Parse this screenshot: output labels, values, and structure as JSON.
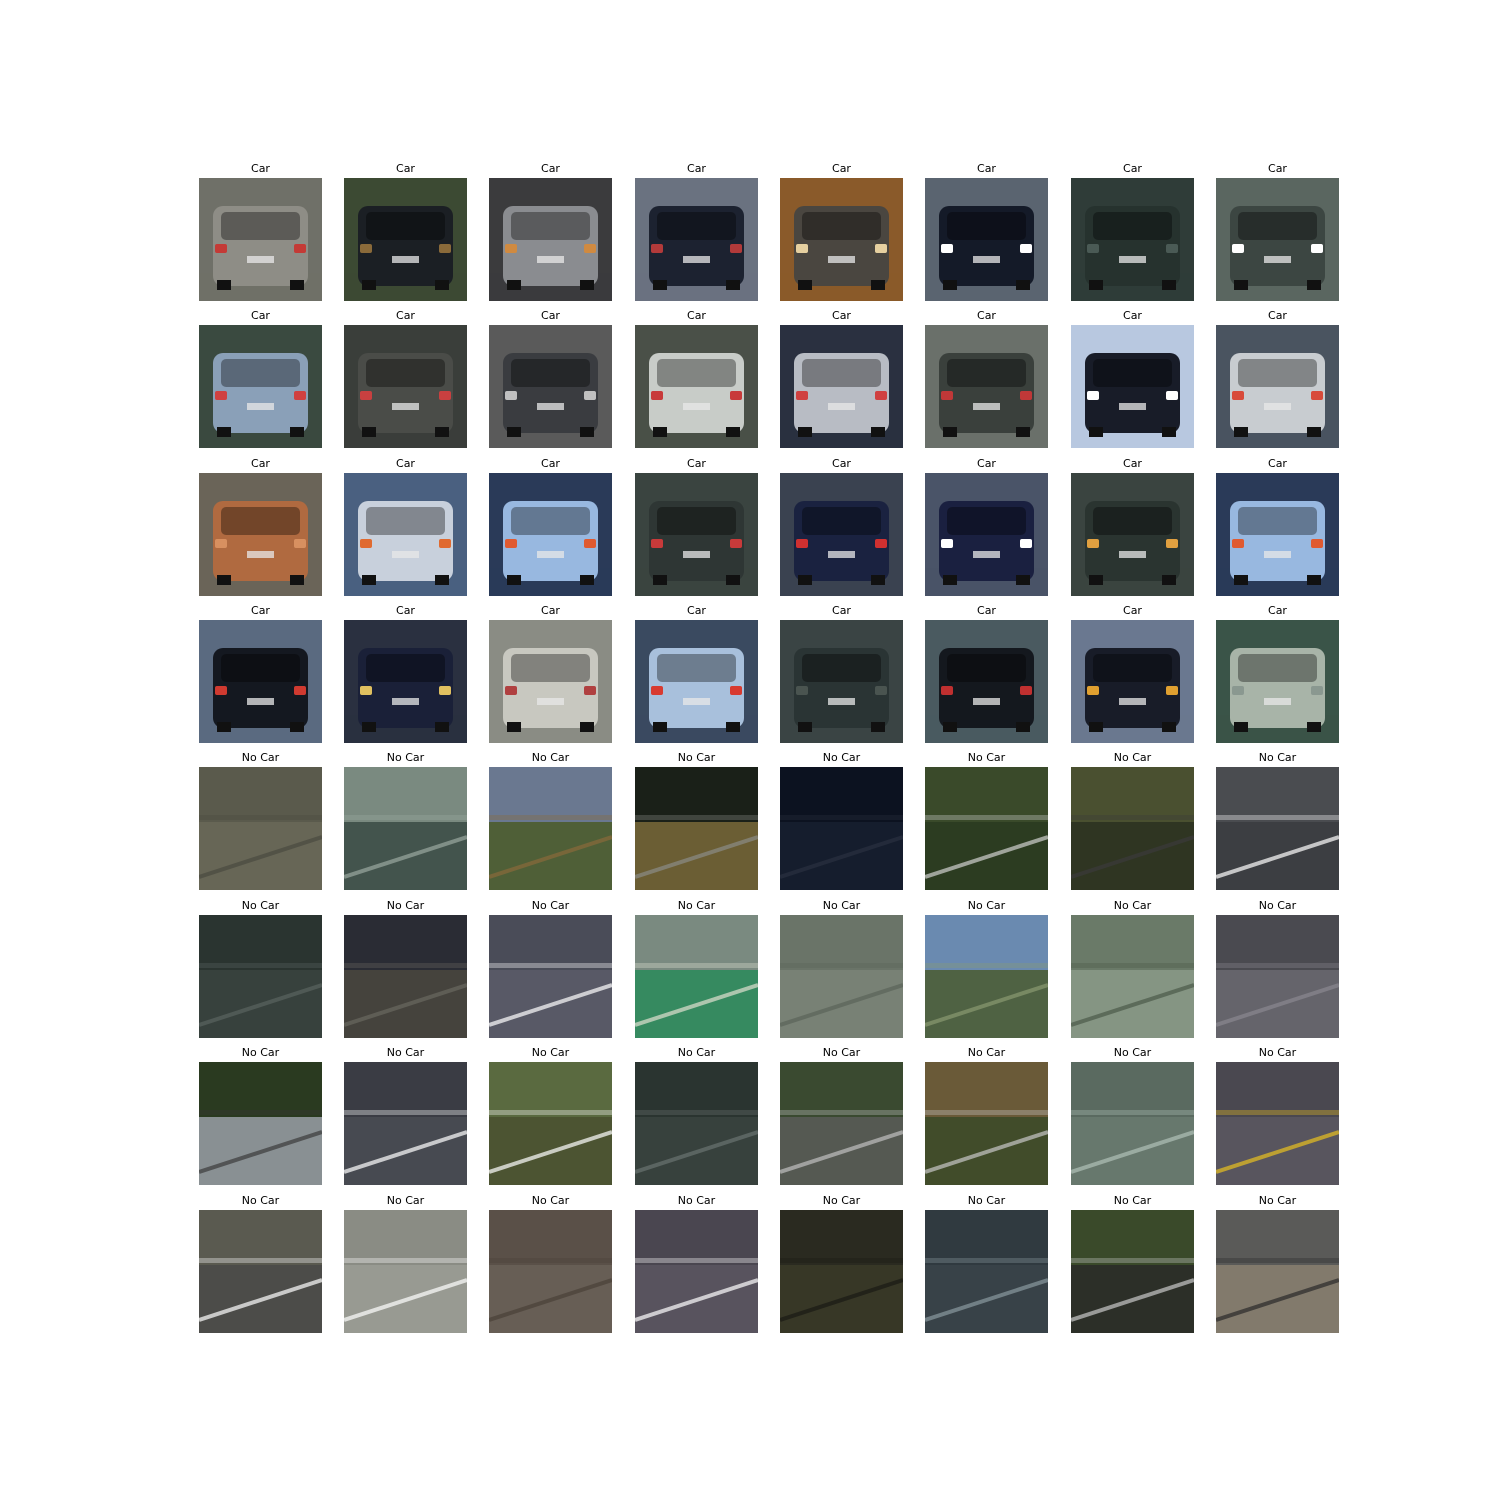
{
  "figure": {
    "rows": 8,
    "columns": 8,
    "cells": [
      {
        "label": "Car",
        "class": "car",
        "tone": "gray-van",
        "bg": "#6f7068",
        "body": "#8e8d86",
        "accent": "#c43a36"
      },
      {
        "label": "Car",
        "class": "car",
        "tone": "dark-parked-trees",
        "bg": "#3c4a33",
        "body": "#1b1f24",
        "accent": "#8a6a3a"
      },
      {
        "label": "Car",
        "class": "car",
        "tone": "silver-blurred",
        "bg": "#3b3b3d",
        "body": "#8a8c90",
        "accent": "#d08a40"
      },
      {
        "label": "Car",
        "class": "car",
        "tone": "dark-blue",
        "bg": "#6a7280",
        "body": "#1c2230",
        "accent": "#b23a3a"
      },
      {
        "label": "Car",
        "class": "car",
        "tone": "small-orange-bg",
        "bg": "#8a5a2a",
        "body": "#4a4640",
        "accent": "#e6d0a0"
      },
      {
        "label": "Car",
        "class": "car",
        "tone": "navy-plate",
        "bg": "#5a6470",
        "body": "#141a28",
        "accent": "#ffffff"
      },
      {
        "label": "Car",
        "class": "car",
        "tone": "dark-green-blur",
        "bg": "#2f3c38",
        "body": "#26322e",
        "accent": "#4a5a55"
      },
      {
        "label": "Car",
        "class": "car",
        "tone": "green-sedan",
        "bg": "#5a6660",
        "body": "#3c4642",
        "accent": "#ffffff"
      },
      {
        "label": "Car",
        "class": "car",
        "tone": "silver-hatch",
        "bg": "#3a4a40",
        "body": "#8aa0b8",
        "accent": "#d04040"
      },
      {
        "label": "Car",
        "class": "car",
        "tone": "dark-gray-blur",
        "bg": "#3a3e3a",
        "body": "#4a4c48",
        "accent": "#c84040"
      },
      {
        "label": "Car",
        "class": "car",
        "tone": "wagon-parked",
        "bg": "#5a5a5a",
        "body": "#3a3c40",
        "accent": "#c0c0c0"
      },
      {
        "label": "Car",
        "class": "car",
        "tone": "white-hatch",
        "bg": "#4a5048",
        "body": "#c8ccc8",
        "accent": "#c83a3a"
      },
      {
        "label": "Car",
        "class": "car",
        "tone": "white-sedan-road",
        "bg": "#2a3040",
        "body": "#b8bcc4",
        "accent": "#d04040"
      },
      {
        "label": "Car",
        "class": "car",
        "tone": "gray-sedan",
        "bg": "#6a706a",
        "body": "#3a403c",
        "accent": "#c03838"
      },
      {
        "label": "Car",
        "class": "car",
        "tone": "dark-suv-bright",
        "bg": "#b8c8e0",
        "body": "#181c28",
        "accent": "#ffffff"
      },
      {
        "label": "Car",
        "class": "car",
        "tone": "silver-wagon",
        "bg": "#4a5460",
        "body": "#c8ccd0",
        "accent": "#d84a3a"
      },
      {
        "label": "Car",
        "class": "car",
        "tone": "orange-hatch",
        "bg": "#6a6458",
        "body": "#b06a40",
        "accent": "#d89060"
      },
      {
        "label": "Car",
        "class": "car",
        "tone": "white-blue-hatch",
        "bg": "#4a6080",
        "body": "#c8d0dc",
        "accent": "#e06a30"
      },
      {
        "label": "Car",
        "class": "car",
        "tone": "blue-hatch",
        "bg": "#2a3a58",
        "body": "#98b8e0",
        "accent": "#e05a30"
      },
      {
        "label": "Car",
        "class": "car",
        "tone": "dark-golf",
        "bg": "#3a4440",
        "body": "#2e3634",
        "accent": "#c83a3a"
      },
      {
        "label": "Car",
        "class": "car",
        "tone": "navy-wagon",
        "bg": "#3a4250",
        "body": "#1a2240",
        "accent": "#d03030"
      },
      {
        "label": "Car",
        "class": "car",
        "tone": "navy-plate-2",
        "bg": "#4a5468",
        "body": "#1a2040",
        "accent": "#ffffff"
      },
      {
        "label": "Car",
        "class": "car",
        "tone": "dark-van-logo",
        "bg": "#3a4440",
        "body": "#2a3430",
        "accent": "#e0a040"
      },
      {
        "label": "Car",
        "class": "car",
        "tone": "blue-hatch-2",
        "bg": "#2a3a58",
        "body": "#98b8e0",
        "accent": "#e05a30"
      },
      {
        "label": "Car",
        "class": "car",
        "tone": "black-suv",
        "bg": "#5a6a80",
        "body": "#141820",
        "accent": "#d03a30"
      },
      {
        "label": "Car",
        "class": "car",
        "tone": "navy-blur",
        "bg": "#2a3040",
        "body": "#1a2038",
        "accent": "#e0c060"
      },
      {
        "label": "Car",
        "class": "car",
        "tone": "white-minivan",
        "bg": "#8a8c84",
        "body": "#c8c8c0",
        "accent": "#b04040"
      },
      {
        "label": "Car",
        "class": "car",
        "tone": "light-blue-hatch",
        "bg": "#3a4a60",
        "body": "#a8c0dc",
        "accent": "#d83a30"
      },
      {
        "label": "Car",
        "class": "car",
        "tone": "dim-suv",
        "bg": "#3a4444",
        "body": "#2a3434",
        "accent": "#4a5450"
      },
      {
        "label": "Car",
        "class": "car",
        "tone": "black-hatch-street",
        "bg": "#4a5a60",
        "body": "#14181e",
        "accent": "#c03030"
      },
      {
        "label": "Car",
        "class": "car",
        "tone": "dark-hatch-orange",
        "bg": "#6a7890",
        "body": "#181c28",
        "accent": "#e0a030"
      },
      {
        "label": "Car",
        "class": "car",
        "tone": "silver-golf",
        "bg": "#3a5448",
        "body": "#a8b4a8",
        "accent": "#8a9890"
      },
      {
        "label": "No Car",
        "class": "notcar",
        "tone": "gray-wall",
        "bg": "#5a5a4c",
        "body": "#6a6858",
        "accent": "#4a4a40"
      },
      {
        "label": "No Car",
        "class": "notcar",
        "tone": "bridge-water",
        "bg": "#7a8a80",
        "body": "#3a4a44",
        "accent": "#9aa8a0"
      },
      {
        "label": "No Car",
        "class": "notcar",
        "tone": "tree-branches",
        "bg": "#6a7890",
        "body": "#4a5a28",
        "accent": "#8a6a3a"
      },
      {
        "label": "No Car",
        "class": "notcar",
        "tone": "dark-hillside",
        "bg": "#1a2018",
        "body": "#7a6a3a",
        "accent": "#8a8c88"
      },
      {
        "label": "No Car",
        "class": "notcar",
        "tone": "night-road",
        "bg": "#0c1220",
        "body": "#182030",
        "accent": "#2a3040"
      },
      {
        "label": "No Car",
        "class": "notcar",
        "tone": "trees-guardrail",
        "bg": "#3a4a2a",
        "body": "#2a3a20",
        "accent": "#d0d0d0"
      },
      {
        "label": "No Car",
        "class": "notcar",
        "tone": "trees-road-edge",
        "bg": "#4a5030",
        "body": "#2a3020",
        "accent": "#3a3a3a"
      },
      {
        "label": "No Car",
        "class": "notcar",
        "tone": "road-white-car",
        "bg": "#4a4c50",
        "body": "#3a3c40",
        "accent": "#ffffff"
      },
      {
        "label": "No Car",
        "class": "notcar",
        "tone": "road-diagonal",
        "bg": "#2a3430",
        "body": "#3a4440",
        "accent": "#5a6460"
      },
      {
        "label": "No Car",
        "class": "notcar",
        "tone": "road-corner",
        "bg": "#2a2c34",
        "body": "#4a4840",
        "accent": "#6a6860"
      },
      {
        "label": "No Car",
        "class": "notcar",
        "tone": "road-dashes",
        "bg": "#4a4c58",
        "body": "#5a5c68",
        "accent": "#ffffff"
      },
      {
        "label": "No Car",
        "class": "notcar",
        "tone": "green-bollard",
        "bg": "#7a8a80",
        "body": "#2a8a5a",
        "accent": "#e0e0d0"
      },
      {
        "label": "No Car",
        "class": "notcar",
        "tone": "gray-green-asphalt",
        "bg": "#6a7468",
        "body": "#7a8478",
        "accent": "#5a6458"
      },
      {
        "label": "No Car",
        "class": "notcar",
        "tone": "tree-sky",
        "bg": "#6a8ab0",
        "body": "#4a5a30",
        "accent": "#8a9a70"
      },
      {
        "label": "No Car",
        "class": "notcar",
        "tone": "blur-green",
        "bg": "#6a7a68",
        "body": "#8a9a88",
        "accent": "#4a5a48"
      },
      {
        "label": "No Car",
        "class": "notcar",
        "tone": "asphalt-gray",
        "bg": "#4a4a50",
        "body": "#6a6870",
        "accent": "#8a8890"
      },
      {
        "label": "No Car",
        "class": "notcar",
        "tone": "trees-rail-wheel",
        "bg": "#2a3a20",
        "body": "#9aa0a8",
        "accent": "#3a3a3a"
      },
      {
        "label": "No Car",
        "class": "notcar",
        "tone": "road-car-edge",
        "bg": "#3a3c44",
        "body": "#4a4c54",
        "accent": "#ffffff"
      },
      {
        "label": "No Car",
        "class": "notcar",
        "tone": "grass-line",
        "bg": "#5a6a40",
        "body": "#4a5030",
        "accent": "#ffffff"
      },
      {
        "label": "No Car",
        "class": "notcar",
        "tone": "dark-road-stripe",
        "bg": "#2a3430",
        "body": "#3a4440",
        "accent": "#6a7470"
      },
      {
        "label": "No Car",
        "class": "notcar",
        "tone": "trees-sign",
        "bg": "#3a4a30",
        "body": "#5a5c58",
        "accent": "#c0c0c0"
      },
      {
        "label": "No Car",
        "class": "notcar",
        "tone": "hill-rail",
        "bg": "#6a5a38",
        "body": "#3a4a28",
        "accent": "#c8c8c8"
      },
      {
        "label": "No Car",
        "class": "notcar",
        "tone": "green-road-lines",
        "bg": "#5a6a60",
        "body": "#6a7a70",
        "accent": "#b0c0b8"
      },
      {
        "label": "No Car",
        "class": "notcar",
        "tone": "road-yellow-line",
        "bg": "#4a4850",
        "body": "#5a5860",
        "accent": "#e8c020"
      },
      {
        "label": "No Car",
        "class": "notcar",
        "tone": "road-white-line",
        "bg": "#5a5a50",
        "body": "#4a4a48",
        "accent": "#ffffff"
      },
      {
        "label": "No Car",
        "class": "notcar",
        "tone": "pale-asphalt",
        "bg": "#8a8c84",
        "body": "#9a9c94",
        "accent": "#ffffff"
      },
      {
        "label": "No Car",
        "class": "notcar",
        "tone": "brown-asphalt",
        "bg": "#5a5048",
        "body": "#6a6058",
        "accent": "#4a4038"
      },
      {
        "label": "No Car",
        "class": "notcar",
        "tone": "purple-asphalt",
        "bg": "#4a4650",
        "body": "#5a5660",
        "accent": "#ffffff"
      },
      {
        "label": "No Car",
        "class": "notcar",
        "tone": "dark-forest",
        "bg": "#2a2a20",
        "body": "#3a3a28",
        "accent": "#1a1a14"
      },
      {
        "label": "No Car",
        "class": "notcar",
        "tone": "teal-asphalt",
        "bg": "#303a40",
        "body": "#3a444a",
        "accent": "#8a9aa0"
      },
      {
        "label": "No Car",
        "class": "notcar",
        "tone": "trees-rail-dark",
        "bg": "#3a4a2a",
        "body": "#2a2a28",
        "accent": "#c8c8c8"
      },
      {
        "label": "No Car",
        "class": "notcar",
        "tone": "road-overpass",
        "bg": "#5a5a58",
        "body": "#8a8070",
        "accent": "#2a2a2a"
      }
    ]
  }
}
